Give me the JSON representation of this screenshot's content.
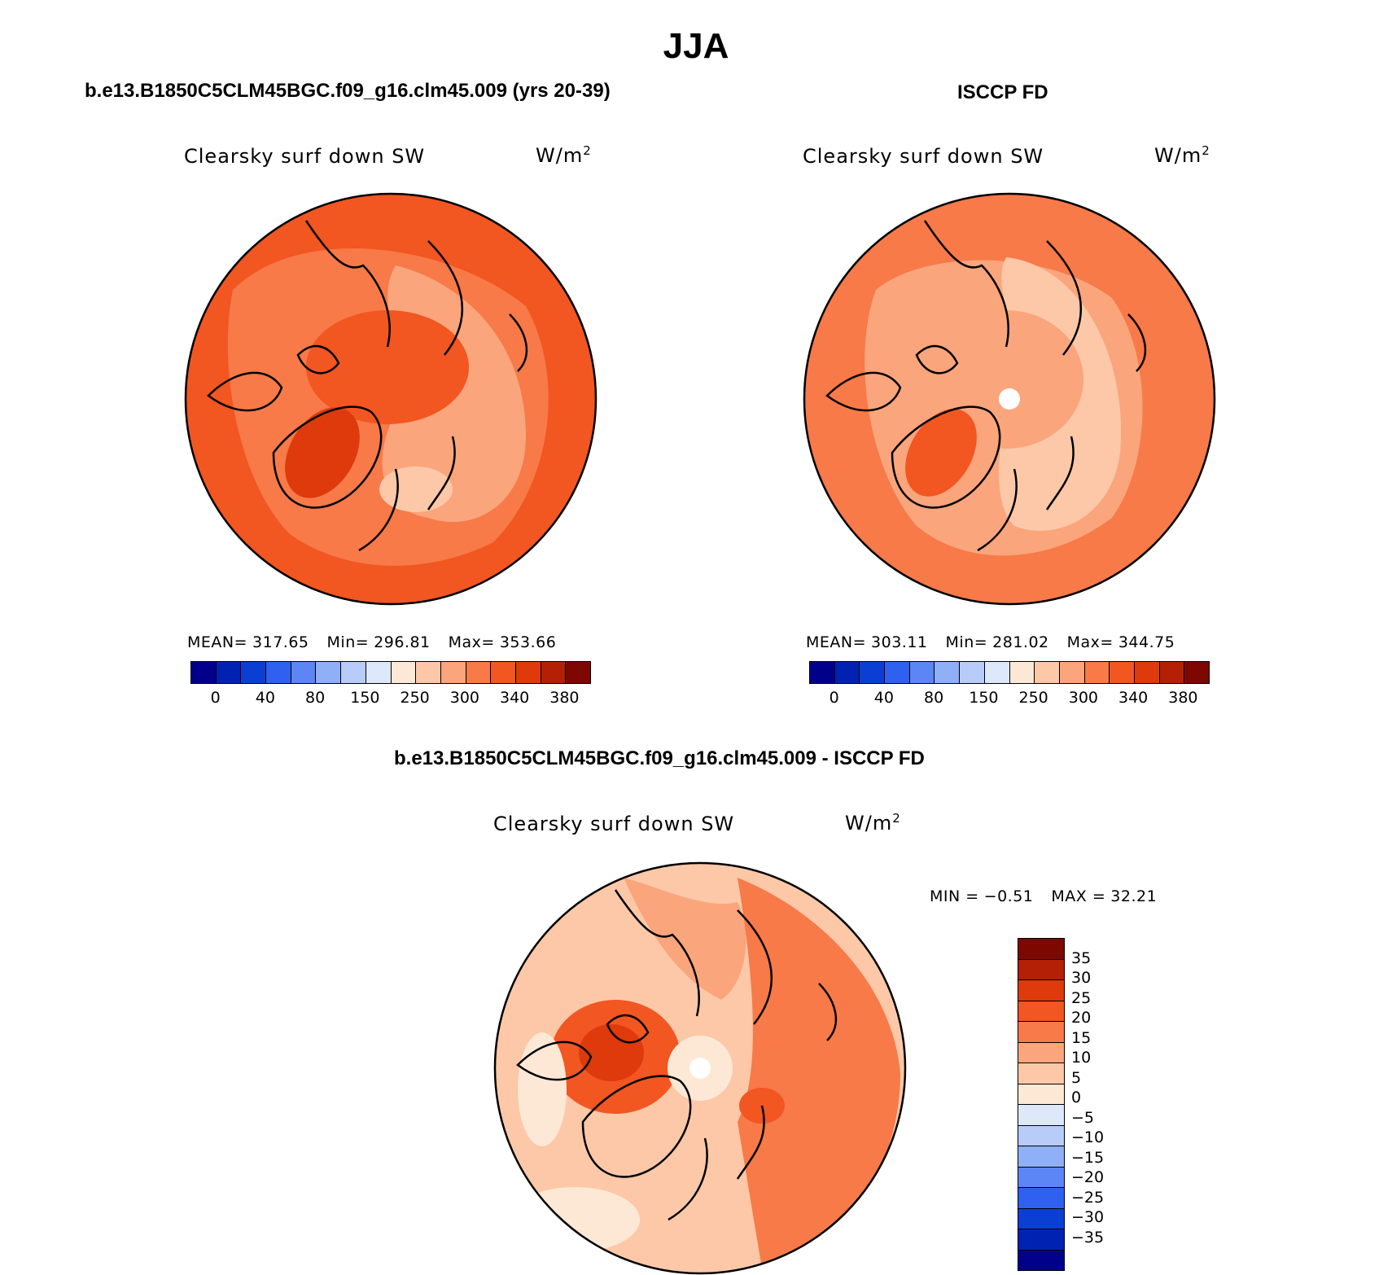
{
  "main_title": "JJA",
  "panels": [
    {
      "title": "b.e13.B1850C5CLM45BGC.f09_g16.clm45.009 (yrs 20-39)",
      "variable": "Clearsky surf down SW",
      "unit": "W/m",
      "unit_sup": "2",
      "stats": {
        "mean_label": "MEAN=",
        "mean": "317.65",
        "min_label": "Min=",
        "min": "296.81",
        "max_label": "Max=",
        "max": "353.66"
      }
    },
    {
      "title": "ISCCP FD",
      "variable": "Clearsky surf down SW",
      "unit": "W/m",
      "unit_sup": "2",
      "stats": {
        "mean_label": "MEAN=",
        "mean": "303.11",
        "min_label": "Min=",
        "min": "281.02",
        "max_label": "Max=",
        "max": "344.75"
      }
    },
    {
      "title": "b.e13.B1850C5CLM45BGC.f09_g16.clm45.009 - ISCCP FD",
      "variable": "Clearsky surf down SW",
      "unit": "W/m",
      "unit_sup": "2",
      "stats": {
        "min_label": "MIN =",
        "min": "−0.51",
        "max_label": "MAX =",
        "max": "32.21"
      }
    }
  ],
  "abs_colorbar": {
    "colors": [
      "#00008a",
      "#0022b3",
      "#0b3fd4",
      "#2f60f0",
      "#5c86f5",
      "#8fb0f7",
      "#b7ccf9",
      "#dde8fb",
      "#fde8d6",
      "#fcc8a8",
      "#fba57c",
      "#f77a48",
      "#f25621",
      "#de3a0c",
      "#b32006",
      "#7d0800"
    ],
    "ticks": [
      "0",
      "40",
      "80",
      "150",
      "250",
      "300",
      "340",
      "380"
    ]
  },
  "diff_colorbar": {
    "colors": [
      "#7d0800",
      "#b32006",
      "#de3a0c",
      "#f25621",
      "#f77a48",
      "#fba57c",
      "#fcc8a8",
      "#fde8d6",
      "#dde8fb",
      "#b7ccf9",
      "#8fb0f7",
      "#5c86f5",
      "#2f60f0",
      "#0b3fd4",
      "#0022b3",
      "#00008a"
    ],
    "ticks": [
      "35",
      "30",
      "25",
      "20",
      "15",
      "10",
      "5",
      "0",
      "−5",
      "−10",
      "−15",
      "−20",
      "−25",
      "−30",
      "−35"
    ]
  },
  "colors": {
    "land_outline": "#000000"
  }
}
